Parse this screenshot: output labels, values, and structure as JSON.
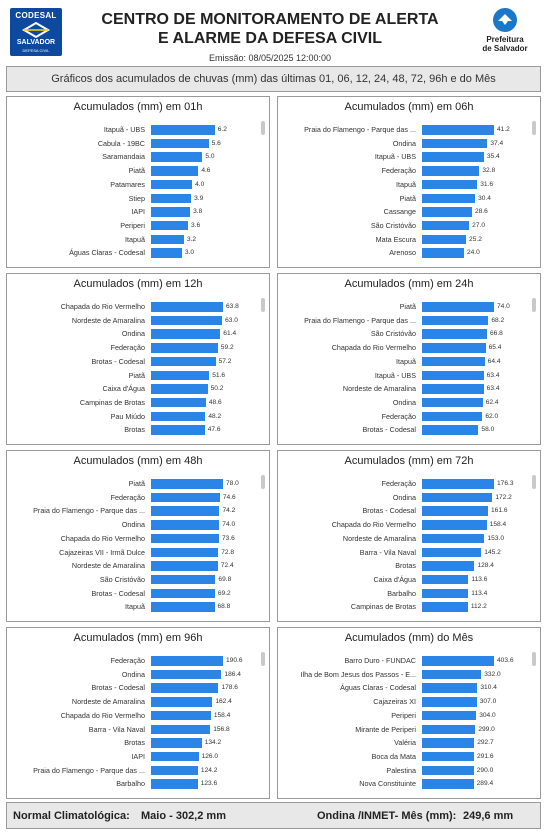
{
  "header": {
    "logo_left": {
      "line1": "CODESAL",
      "line2": "SALVADOR",
      "line3": "DEFESA CIVIL"
    },
    "title_line1": "CENTRO DE MONITORAMENTO DE ALERTA",
    "title_line2": "E ALARME DA DEFESA CIVIL",
    "emissao": "Emissão: 08/05/2025 12:00:00",
    "logo_right": {
      "line1": "Prefeitura",
      "line2": "de Salvador"
    },
    "accent_color": "#0d4a9f"
  },
  "subtitle": "Gráficos dos acumulados de chuvas (mm) das últimas 01, 06, 12, 24, 48, 72, 96h e do Mês",
  "bar_color": "#2b85e6",
  "panels": [
    {
      "title": "Acumulados (mm) em 01h",
      "max": 7,
      "rows": [
        {
          "label": "Itapuã - UBS",
          "value": 6.2,
          "value_label": "6.2"
        },
        {
          "label": "Cabula - 19BC",
          "value": 5.6,
          "value_label": "5.6"
        },
        {
          "label": "Saramandaia",
          "value": 5.0,
          "value_label": "5.0"
        },
        {
          "label": "Piatã",
          "value": 4.6,
          "value_label": "4.6"
        },
        {
          "label": "Patamares",
          "value": 4.0,
          "value_label": "4.0"
        },
        {
          "label": "Stiep",
          "value": 3.9,
          "value_label": "3.9"
        },
        {
          "label": "IAPI",
          "value": 3.8,
          "value_label": "3.8"
        },
        {
          "label": "Periperi",
          "value": 3.6,
          "value_label": "3.6"
        },
        {
          "label": "Itapuã",
          "value": 3.2,
          "value_label": "3.2"
        },
        {
          "label": "Águas Claras - Codesal",
          "value": 3.0,
          "value_label": "3.0"
        }
      ]
    },
    {
      "title": "Acumulados (mm) em 06h",
      "max": 41.2,
      "rows": [
        {
          "label": "Praia do Flamengo - Parque das ...",
          "value": 41.2,
          "value_label": "41.2"
        },
        {
          "label": "Ondina",
          "value": 37.4,
          "value_label": "37.4"
        },
        {
          "label": "Itapuã - UBS",
          "value": 35.4,
          "value_label": "35.4"
        },
        {
          "label": "Federação",
          "value": 32.8,
          "value_label": "32.8"
        },
        {
          "label": "Itapuã",
          "value": 31.6,
          "value_label": "31.6"
        },
        {
          "label": "Piatã",
          "value": 30.4,
          "value_label": "30.4"
        },
        {
          "label": "Cassange",
          "value": 28.6,
          "value_label": "28.6"
        },
        {
          "label": "São Cristóvão",
          "value": 27.0,
          "value_label": "27.0"
        },
        {
          "label": "Mata Escura",
          "value": 25.2,
          "value_label": "25.2"
        },
        {
          "label": "Arenoso",
          "value": 24.0,
          "value_label": "24.0"
        }
      ]
    },
    {
      "title": "Acumulados (mm) em 12h",
      "max": 63.8,
      "rows": [
        {
          "label": "Chapada do Rio Vermelho",
          "value": 63.8,
          "value_label": "63.8"
        },
        {
          "label": "Nordeste de Amaralina",
          "value": 63.0,
          "value_label": "63.0"
        },
        {
          "label": "Ondina",
          "value": 61.4,
          "value_label": "61.4"
        },
        {
          "label": "Federação",
          "value": 59.2,
          "value_label": "59.2"
        },
        {
          "label": "Brotas - Codesal",
          "value": 57.2,
          "value_label": "57.2"
        },
        {
          "label": "Piatã",
          "value": 51.6,
          "value_label": "51.6"
        },
        {
          "label": "Caixa d'Água",
          "value": 50.2,
          "value_label": "50.2"
        },
        {
          "label": "Campinas de Brotas",
          "value": 48.6,
          "value_label": "48.6"
        },
        {
          "label": "Pau Miúdo",
          "value": 48.2,
          "value_label": "48.2"
        },
        {
          "label": "Brotas",
          "value": 47.6,
          "value_label": "47.6"
        }
      ]
    },
    {
      "title": "Acumulados (mm) em 24h",
      "max": 74.0,
      "rows": [
        {
          "label": "Piatã",
          "value": 74.0,
          "value_label": "74.0"
        },
        {
          "label": "Praia do Flamengo - Parque das ...",
          "value": 68.2,
          "value_label": "68.2"
        },
        {
          "label": "São Cristóvão",
          "value": 66.8,
          "value_label": "66.8"
        },
        {
          "label": "Chapada do Rio Vermelho",
          "value": 65.4,
          "value_label": "65.4"
        },
        {
          "label": "Itapuã",
          "value": 64.4,
          "value_label": "64.4"
        },
        {
          "label": "Itapuã - UBS",
          "value": 63.4,
          "value_label": "63.4"
        },
        {
          "label": "Nordeste de Amaralina",
          "value": 63.4,
          "value_label": "63.4"
        },
        {
          "label": "Ondina",
          "value": 62.4,
          "value_label": "62.4"
        },
        {
          "label": "Federação",
          "value": 62.0,
          "value_label": "62.0"
        },
        {
          "label": "Brotas - Codesal",
          "value": 58.0,
          "value_label": "58.0"
        }
      ]
    },
    {
      "title": "Acumulados (mm) em 48h",
      "max": 78.0,
      "rows": [
        {
          "label": "Piatã",
          "value": 78.0,
          "value_label": "78.0"
        },
        {
          "label": "Federação",
          "value": 74.6,
          "value_label": "74.6"
        },
        {
          "label": "Praia do Flamengo - Parque das ...",
          "value": 74.2,
          "value_label": "74.2"
        },
        {
          "label": "Ondina",
          "value": 74.0,
          "value_label": "74.0"
        },
        {
          "label": "Chapada do Rio Vermelho",
          "value": 73.6,
          "value_label": "73.6"
        },
        {
          "label": "Cajazeiras VII - Irmã Dulce",
          "value": 72.8,
          "value_label": "72.8"
        },
        {
          "label": "Nordeste de Amaralina",
          "value": 72.4,
          "value_label": "72.4"
        },
        {
          "label": "São Cristóvão",
          "value": 69.8,
          "value_label": "69.8"
        },
        {
          "label": "Brotas - Codesal",
          "value": 69.2,
          "value_label": "69.2"
        },
        {
          "label": "Itapuã",
          "value": 68.8,
          "value_label": "68.8"
        }
      ]
    },
    {
      "title": "Acumulados (mm) em 72h",
      "max": 176.3,
      "rows": [
        {
          "label": "Federação",
          "value": 176.3,
          "value_label": "176.3"
        },
        {
          "label": "Ondina",
          "value": 172.2,
          "value_label": "172.2"
        },
        {
          "label": "Brotas - Codesal",
          "value": 161.6,
          "value_label": "161.6"
        },
        {
          "label": "Chapada do Rio Vermelho",
          "value": 158.4,
          "value_label": "158.4"
        },
        {
          "label": "Nordeste de Amaralina",
          "value": 153.0,
          "value_label": "153.0"
        },
        {
          "label": "Barra - Vila Naval",
          "value": 145.2,
          "value_label": "145.2"
        },
        {
          "label": "Brotas",
          "value": 128.4,
          "value_label": "128.4"
        },
        {
          "label": "Caixa d'Água",
          "value": 113.6,
          "value_label": "113.6"
        },
        {
          "label": "Barbalho",
          "value": 113.4,
          "value_label": "113.4"
        },
        {
          "label": "Campinas de Brotas",
          "value": 112.2,
          "value_label": "112.2"
        }
      ]
    },
    {
      "title": "Acumulados (mm) em 96h",
      "max": 190.6,
      "rows": [
        {
          "label": "Federação",
          "value": 190.6,
          "value_label": "190.6"
        },
        {
          "label": "Ondina",
          "value": 186.4,
          "value_label": "186.4"
        },
        {
          "label": "Brotas - Codesal",
          "value": 178.6,
          "value_label": "178.6"
        },
        {
          "label": "Nordeste de Amaralina",
          "value": 162.4,
          "value_label": "162.4"
        },
        {
          "label": "Chapada do Rio Vermelho",
          "value": 158.4,
          "value_label": "158.4"
        },
        {
          "label": "Barra - Vila Naval",
          "value": 156.8,
          "value_label": "156.8"
        },
        {
          "label": "Brotas",
          "value": 134.2,
          "value_label": "134.2"
        },
        {
          "label": "IAPI",
          "value": 126.0,
          "value_label": "126.0"
        },
        {
          "label": "Praia do Flamengo - Parque das ...",
          "value": 124.2,
          "value_label": "124.2"
        },
        {
          "label": "Barbalho",
          "value": 123.6,
          "value_label": "123.6"
        }
      ]
    },
    {
      "title": "Acumulados (mm) do Mês",
      "max": 403.6,
      "rows": [
        {
          "label": "Barro Duro - FUNDAC",
          "value": 403.6,
          "value_label": "403.6"
        },
        {
          "label": "Ilha de Bom Jesus dos Passos - E...",
          "value": 332.0,
          "value_label": "332.0"
        },
        {
          "label": "Águas Claras - Codesal",
          "value": 310.4,
          "value_label": "310.4"
        },
        {
          "label": "Cajazeiras XI",
          "value": 307.0,
          "value_label": "307.0"
        },
        {
          "label": "Periperi",
          "value": 304.0,
          "value_label": "304.0"
        },
        {
          "label": "Mirante de Periperi",
          "value": 299.0,
          "value_label": "299.0"
        },
        {
          "label": "Valéria",
          "value": 292.7,
          "value_label": "292.7"
        },
        {
          "label": "Boca da Mata",
          "value": 291.6,
          "value_label": "291.6"
        },
        {
          "label": "Palestina",
          "value": 290.0,
          "value_label": "290.0"
        },
        {
          "label": "Nova Constituinte",
          "value": 289.4,
          "value_label": "289.4"
        }
      ]
    }
  ],
  "footer": {
    "label1": "Normal Climatológica:",
    "value1": "Maio - 302,2 mm",
    "label2": "Ondina /INMET- Mês (mm):",
    "value2": "249,6 mm"
  }
}
